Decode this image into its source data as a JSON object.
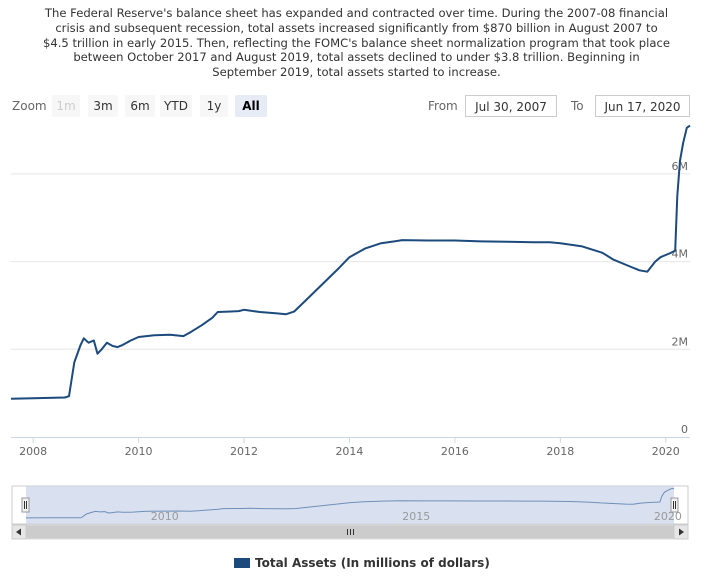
{
  "description_lines": [
    "The Federal Reserve's balance sheet has expanded and contracted over time. During the 2007-08 financial",
    "crisis and subsequent recession, total assets increased significantly from $870 billion in August 2007 to",
    "$4.5 trillion in early 2015. Then, reflecting the FOMC's balance sheet normalization program that took place",
    "between October 2017 and August 2019, total assets declined to under $3.8 trillion. Beginning in",
    "September 2019, total assets started to increase."
  ],
  "range_selector": {
    "zoom_label": "Zoom",
    "buttons": [
      {
        "label": "1m",
        "state": "disabled"
      },
      {
        "label": "3m",
        "state": "normal"
      },
      {
        "label": "6m",
        "state": "normal"
      },
      {
        "label": "YTD",
        "state": "normal"
      },
      {
        "label": "1y",
        "state": "normal"
      },
      {
        "label": "All",
        "state": "active"
      }
    ],
    "from_label": "From",
    "from_value": "Jul 30, 2007",
    "to_label": "To",
    "to_value": "Jun 17, 2020"
  },
  "navigator": {
    "scroll_thumb_icon": "grip-lines-icon",
    "left_arrow_icon": "triangle-left-icon",
    "right_arrow_icon": "triangle-right-icon"
  },
  "colors": {
    "series": "#1c4a7d",
    "grid": "#e6e6e6",
    "navigator_mask": "#ccd6eb",
    "navigator_series": "#6f8fb8"
  },
  "chart_data": {
    "type": "line",
    "title": "",
    "xlabel": "",
    "ylabel": "",
    "xlim": [
      2007.58,
      2020.46
    ],
    "ylim": [
      0,
      7000000
    ],
    "x_ticks": [
      "2008",
      "2010",
      "2012",
      "2014",
      "2016",
      "2018",
      "2020"
    ],
    "y_ticks": [
      "0",
      "2M",
      "4M",
      "6M"
    ],
    "navigator_ticks": [
      "2010",
      "2015",
      "2020"
    ],
    "legend": {
      "placement": "bottom-center"
    },
    "series": [
      {
        "name": "Total Assets (In millions of dollars)",
        "points": [
          [
            2007.58,
            870000
          ],
          [
            2008.0,
            885000
          ],
          [
            2008.6,
            900000
          ],
          [
            2008.68,
            930000
          ],
          [
            2008.78,
            1700000
          ],
          [
            2008.9,
            2100000
          ],
          [
            2008.96,
            2250000
          ],
          [
            2009.05,
            2150000
          ],
          [
            2009.15,
            2200000
          ],
          [
            2009.22,
            1900000
          ],
          [
            2009.3,
            2000000
          ],
          [
            2009.4,
            2150000
          ],
          [
            2009.5,
            2080000
          ],
          [
            2009.6,
            2050000
          ],
          [
            2009.7,
            2100000
          ],
          [
            2009.85,
            2200000
          ],
          [
            2010.0,
            2280000
          ],
          [
            2010.3,
            2320000
          ],
          [
            2010.6,
            2330000
          ],
          [
            2010.85,
            2300000
          ],
          [
            2011.0,
            2400000
          ],
          [
            2011.2,
            2550000
          ],
          [
            2011.4,
            2720000
          ],
          [
            2011.5,
            2850000
          ],
          [
            2011.7,
            2860000
          ],
          [
            2011.9,
            2870000
          ],
          [
            2012.0,
            2900000
          ],
          [
            2012.3,
            2850000
          ],
          [
            2012.6,
            2820000
          ],
          [
            2012.8,
            2800000
          ],
          [
            2012.95,
            2860000
          ],
          [
            2013.2,
            3150000
          ],
          [
            2013.5,
            3500000
          ],
          [
            2013.8,
            3850000
          ],
          [
            2014.0,
            4100000
          ],
          [
            2014.3,
            4300000
          ],
          [
            2014.6,
            4420000
          ],
          [
            2014.9,
            4470000
          ],
          [
            2015.0,
            4490000
          ],
          [
            2015.5,
            4480000
          ],
          [
            2016.0,
            4480000
          ],
          [
            2016.5,
            4460000
          ],
          [
            2017.0,
            4450000
          ],
          [
            2017.5,
            4440000
          ],
          [
            2017.8,
            4440000
          ],
          [
            2018.0,
            4420000
          ],
          [
            2018.4,
            4350000
          ],
          [
            2018.8,
            4200000
          ],
          [
            2019.0,
            4050000
          ],
          [
            2019.3,
            3900000
          ],
          [
            2019.5,
            3800000
          ],
          [
            2019.65,
            3770000
          ],
          [
            2019.8,
            4000000
          ],
          [
            2019.9,
            4100000
          ],
          [
            2020.0,
            4150000
          ],
          [
            2020.1,
            4200000
          ],
          [
            2020.18,
            4250000
          ],
          [
            2020.22,
            5500000
          ],
          [
            2020.27,
            6300000
          ],
          [
            2020.33,
            6700000
          ],
          [
            2020.4,
            7050000
          ],
          [
            2020.46,
            7100000
          ]
        ]
      }
    ]
  }
}
